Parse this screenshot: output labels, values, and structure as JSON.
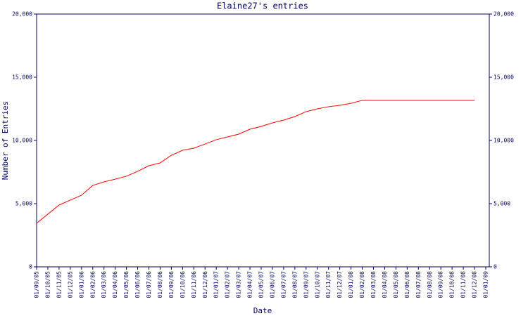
{
  "chart_data": {
    "type": "line",
    "title": "Elaine27's entries",
    "y_label": "Number of Entries",
    "x_label": "Date",
    "categories": [
      "01/09/05",
      "01/10/05",
      "01/11/05",
      "01/12/05",
      "01/01/06",
      "01/02/06",
      "01/03/06",
      "01/04/06",
      "01/05/06",
      "01/06/06",
      "01/07/06",
      "01/08/06",
      "01/09/06",
      "01/10/06",
      "01/11/06",
      "01/12/06",
      "01/01/07",
      "01/02/07",
      "01/03/07",
      "01/04/07",
      "01/05/07",
      "01/06/07",
      "01/07/07",
      "01/08/07",
      "01/09/07",
      "01/10/07",
      "01/11/07",
      "01/12/07",
      "01/01/08",
      "01/02/08",
      "01/03/08",
      "01/04/08",
      "01/05/08",
      "01/06/08",
      "01/07/08",
      "01/08/08",
      "01/09/08",
      "01/10/08",
      "01/11/08",
      "01/12/08",
      "01/01/09"
    ],
    "series": [
      {
        "name": "Entries",
        "color": "#ff0000",
        "values": [
          3450,
          4170,
          4890,
          5280,
          5670,
          6440,
          6720,
          6940,
          7170,
          7560,
          8000,
          8220,
          8830,
          9220,
          9390,
          9720,
          10060,
          10280,
          10500,
          10890,
          11110,
          11390,
          11610,
          11890,
          12280,
          12500,
          12670,
          12780,
          12940,
          13170,
          13170,
          13170,
          13170,
          13170,
          13170,
          13170,
          13170,
          13170,
          13170,
          13170,
          null
        ]
      }
    ],
    "ylim": [
      0,
      20000
    ],
    "yticks": [
      0,
      {
        "value": 5000,
        "label": "5,000"
      },
      {
        "value": 10000,
        "label": "10,000"
      },
      {
        "value": 15000,
        "label": "15,000"
      },
      {
        "value": 20000,
        "label": "20,000"
      }
    ],
    "y2lim": [
      0,
      20000
    ],
    "y2ticks": [
      0,
      {
        "value": 5000,
        "label": "5,000"
      },
      {
        "value": 10000,
        "label": "10,000"
      },
      {
        "value": 15000,
        "label": "15,000"
      },
      {
        "value": 20000,
        "label": "20,000"
      }
    ],
    "axis_color": "#000066"
  }
}
